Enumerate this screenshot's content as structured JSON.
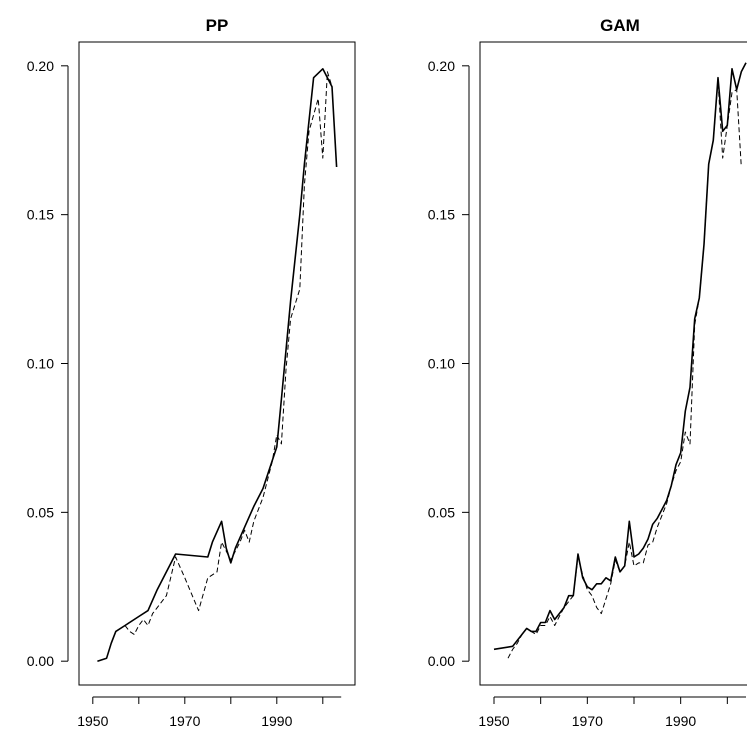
{
  "chart_data": [
    {
      "type": "line",
      "title": "PP",
      "xlabel": "",
      "ylabel": "",
      "xlim": [
        1947,
        2007
      ],
      "ylim": [
        -0.008,
        0.208
      ],
      "x_ticks": [
        1950,
        1970,
        1990
      ],
      "x_tick_labels": [
        "1950",
        "1970",
        "1990"
      ],
      "y_ticks": [
        0.0,
        0.05,
        0.1,
        0.15,
        0.2
      ],
      "y_tick_labels": [
        "0.00",
        "0.05",
        "0.10",
        "0.15",
        "0.20"
      ],
      "grid": false,
      "series": [
        {
          "style": "solid",
          "x": [
            1951,
            1953,
            1954,
            1955,
            1957,
            1960,
            1962,
            1964,
            1968,
            1975,
            1976,
            1978,
            1979,
            1980,
            1981,
            1983,
            1985,
            1987,
            1990,
            1991,
            1993,
            1995,
            1996,
            1998,
            2000,
            2001,
            2002,
            2003
          ],
          "y": [
            0.0,
            0.001,
            0.006,
            0.01,
            0.012,
            0.015,
            0.017,
            0.024,
            0.036,
            0.035,
            0.04,
            0.047,
            0.038,
            0.033,
            0.038,
            0.045,
            0.052,
            0.058,
            0.072,
            0.088,
            0.121,
            0.15,
            0.167,
            0.196,
            0.199,
            0.196,
            0.193,
            0.166
          ]
        },
        {
          "style": "dashed",
          "x": [
            1957,
            1958,
            1959,
            1960,
            1961,
            1962,
            1963,
            1966,
            1968,
            1970,
            1973,
            1975,
            1977,
            1978,
            1980,
            1982,
            1983,
            1984,
            1985,
            1987,
            1989,
            1990,
            1991,
            1992,
            1993,
            1995,
            1996,
            1997,
            1999,
            2000,
            2001,
            2002
          ],
          "y": [
            0.012,
            0.01,
            0.009,
            0.012,
            0.014,
            0.012,
            0.016,
            0.022,
            0.035,
            0.028,
            0.017,
            0.028,
            0.03,
            0.04,
            0.034,
            0.04,
            0.044,
            0.04,
            0.047,
            0.055,
            0.067,
            0.076,
            0.073,
            0.098,
            0.115,
            0.125,
            0.16,
            0.178,
            0.189,
            0.169,
            0.198,
            0.193
          ]
        }
      ]
    },
    {
      "type": "line",
      "title": "GAM",
      "xlabel": "",
      "ylabel": "",
      "xlim": [
        1947,
        2007
      ],
      "ylim": [
        -0.008,
        0.208
      ],
      "x_ticks": [
        1950,
        1970,
        1990
      ],
      "x_tick_labels": [
        "1950",
        "1970",
        "1990"
      ],
      "y_ticks": [
        0.0,
        0.05,
        0.1,
        0.15,
        0.2
      ],
      "y_tick_labels": [
        "0.00",
        "0.05",
        "0.10",
        "0.15",
        "0.20"
      ],
      "grid": false,
      "series": [
        {
          "style": "solid",
          "x": [
            1950,
            1954,
            1956,
            1957,
            1958,
            1959,
            1960,
            1961,
            1962,
            1963,
            1964,
            1965,
            1966,
            1967,
            1968,
            1969,
            1970,
            1971,
            1972,
            1973,
            1974,
            1975,
            1976,
            1977,
            1978,
            1979,
            1980,
            1981,
            1982,
            1983,
            1984,
            1985,
            1986,
            1987,
            1988,
            1989,
            1990,
            1991,
            1992,
            1993,
            1994,
            1995,
            1996,
            1997,
            1998,
            1999,
            2000,
            2001,
            2002,
            2003,
            2004
          ],
          "y": [
            0.004,
            0.005,
            0.009,
            0.011,
            0.01,
            0.01,
            0.013,
            0.013,
            0.017,
            0.014,
            0.016,
            0.018,
            0.022,
            0.022,
            0.036,
            0.028,
            0.025,
            0.024,
            0.026,
            0.026,
            0.028,
            0.027,
            0.035,
            0.03,
            0.032,
            0.047,
            0.035,
            0.036,
            0.038,
            0.041,
            0.046,
            0.048,
            0.051,
            0.054,
            0.059,
            0.066,
            0.07,
            0.084,
            0.092,
            0.115,
            0.122,
            0.14,
            0.167,
            0.175,
            0.196,
            0.178,
            0.18,
            0.199,
            0.192,
            0.198,
            0.201
          ]
        },
        {
          "style": "dashed",
          "x": [
            1953,
            1954,
            1955,
            1956,
            1957,
            1958,
            1959,
            1960,
            1961,
            1962,
            1963,
            1964,
            1965,
            1966,
            1967,
            1968,
            1969,
            1970,
            1971,
            1972,
            1973,
            1974,
            1975,
            1976,
            1977,
            1978,
            1979,
            1980,
            1981,
            1982,
            1983,
            1984,
            1985,
            1986,
            1987,
            1988,
            1989,
            1990,
            1991,
            1992,
            1993,
            1994,
            1995,
            1996,
            1997,
            1998,
            1999,
            2000,
            2001,
            2002,
            2003
          ],
          "y": [
            0.001,
            0.004,
            0.006,
            0.009,
            0.011,
            0.01,
            0.009,
            0.012,
            0.012,
            0.015,
            0.012,
            0.015,
            0.018,
            0.02,
            0.022,
            0.035,
            0.029,
            0.024,
            0.022,
            0.018,
            0.016,
            0.021,
            0.026,
            0.034,
            0.03,
            0.032,
            0.04,
            0.032,
            0.033,
            0.033,
            0.039,
            0.04,
            0.045,
            0.049,
            0.053,
            0.059,
            0.064,
            0.067,
            0.077,
            0.073,
            0.113,
            0.122,
            0.14,
            0.167,
            0.175,
            0.195,
            0.169,
            0.18,
            0.191,
            0.192,
            0.166
          ]
        }
      ]
    }
  ]
}
